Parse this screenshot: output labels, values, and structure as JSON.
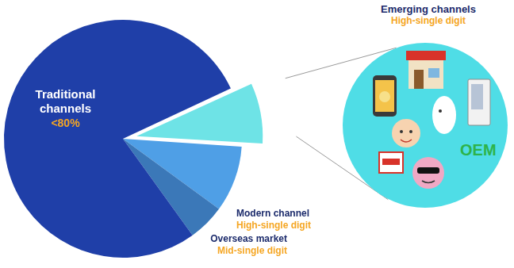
{
  "chart_data": {
    "type": "pie",
    "categories": [
      "Emerging channels",
      "Modern channel",
      "Overseas market",
      "Traditional channels"
    ],
    "values": [
      8,
      9,
      5,
      78
    ],
    "value_labels": [
      "High-single digit",
      "High-single digit",
      "Mid-single digit",
      "<80%"
    ],
    "colors": [
      "#6ee3e6",
      "#4f9fe6",
      "#3b78b8",
      "#1f3fa8"
    ],
    "data_labels": true,
    "annotations": [
      "OEM"
    ]
  }
}
